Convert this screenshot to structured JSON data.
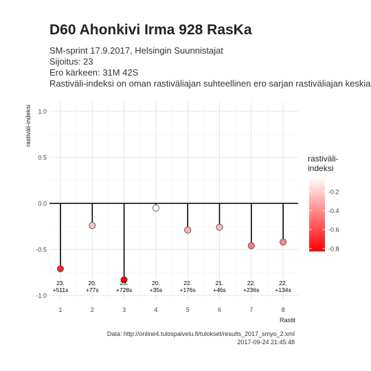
{
  "header": {
    "title": "D60 Ahonkivi Irma 928 RasKa",
    "subtitle_lines": [
      "SM-sprint 17.9.2017, Helsingin Suunnistajat",
      "Sijoitus: 23",
      "Ero kärkeen: 31M 42S",
      "Rastiväli-indeksi on oman rastiväliajan suhteellinen ero sarjan rastiväliajan keskiarvoon"
    ]
  },
  "caption": {
    "line1": "Data: http://online4.tulospalvelu.fi/tulokset/results_2017_smyo_2.xml",
    "line2": "2017-09-24 21:45:48"
  },
  "chart_data": {
    "type": "scatter",
    "style": "lollipop from 0",
    "xlabel": "Rastit",
    "ylabel": "rastiväli-indeksi",
    "ylim": [
      -1.0,
      1.0
    ],
    "yticks": [
      1.0,
      0.5,
      0.0,
      -0.5,
      -1.0
    ],
    "ytick_labels": [
      "1.0",
      "0.5",
      "0.0",
      "-0.5",
      "-1.0"
    ],
    "x": [
      1,
      2,
      3,
      4,
      5,
      6,
      7,
      8
    ],
    "values": [
      -0.71,
      -0.24,
      -0.83,
      -0.05,
      -0.29,
      -0.26,
      -0.46,
      -0.42
    ],
    "point_labels": [
      [
        "23.",
        "+511s"
      ],
      [
        "20.",
        "+77s"
      ],
      [
        "23.",
        "+728s"
      ],
      [
        "20.",
        "+35s"
      ],
      [
        "22.",
        "+176s"
      ],
      [
        "21.",
        "+46s"
      ],
      [
        "22.",
        "+236s"
      ],
      [
        "22.",
        "+134s"
      ]
    ],
    "legend": {
      "title_lines": [
        "rastiväli-",
        "indeksi"
      ],
      "ticks": [
        -0.2,
        -0.4,
        -0.6,
        -0.8
      ],
      "tick_labels": [
        "-0.2",
        "-0.4",
        "-0.6",
        "-0.8"
      ],
      "range": [
        -0.83,
        -0.05
      ],
      "color_low": "#ff0000",
      "color_high": "#ffffff",
      "placement": "right"
    },
    "grid": true
  }
}
